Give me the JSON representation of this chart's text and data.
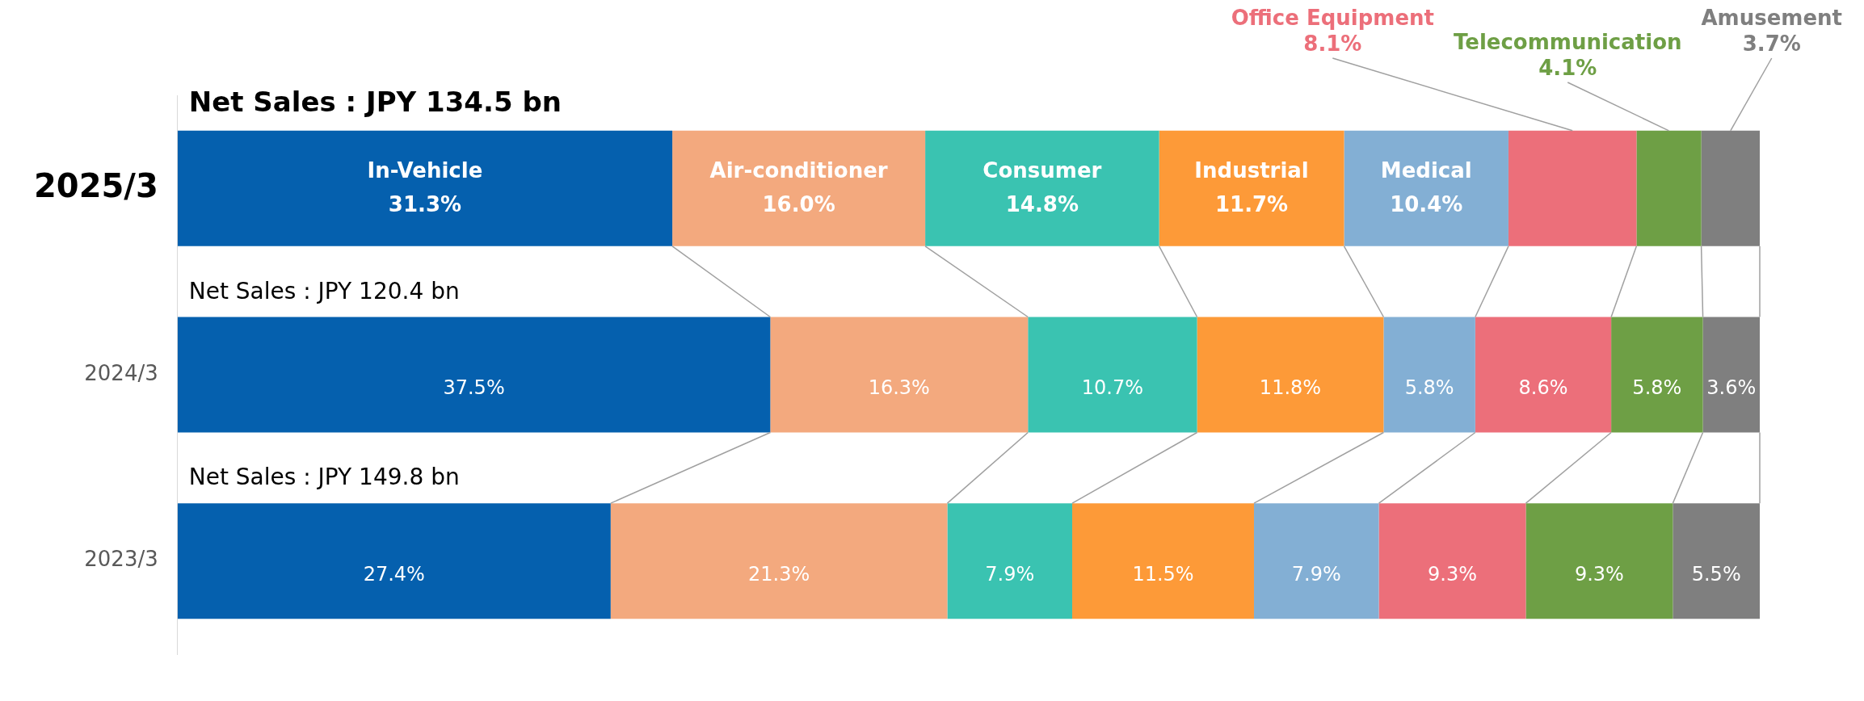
{
  "chart_data": {
    "type": "bar",
    "orientation": "horizontal",
    "stacked": true,
    "categories": [
      "2025/3",
      "2024/3",
      "2023/3"
    ],
    "series": [
      {
        "name": "In-Vehicle",
        "color": "#0560ae",
        "values": [
          31.3,
          37.5,
          27.4
        ],
        "value_labels": [
          "31.3%",
          "37.5%",
          "27.4%"
        ]
      },
      {
        "name": "Air-conditioner",
        "color": "#f3a97e",
        "values": [
          16.0,
          16.3,
          21.3
        ],
        "value_labels": [
          "16.0%",
          "16.3%",
          "21.3%"
        ]
      },
      {
        "name": "Consumer",
        "color": "#3ac3b1",
        "values": [
          14.8,
          10.7,
          7.9
        ],
        "value_labels": [
          "14.8%",
          "10.7%",
          "7.9%"
        ]
      },
      {
        "name": "Industrial",
        "color": "#fd9a38",
        "values": [
          11.7,
          11.8,
          11.5
        ],
        "value_labels": [
          "11.7%",
          "11.8%",
          "11.5%"
        ]
      },
      {
        "name": "Medical",
        "color": "#83afd4",
        "values": [
          10.4,
          5.8,
          7.9
        ],
        "value_labels": [
          "10.4%",
          "5.8%",
          "7.9%"
        ]
      },
      {
        "name": "Office Equipment",
        "color": "#ec6f7a",
        "values": [
          8.1,
          8.6,
          9.3
        ],
        "value_labels": [
          "8.1%",
          "8.6%",
          "9.3%"
        ]
      },
      {
        "name": "Telecommunication",
        "color": "#6e9f45",
        "values": [
          4.1,
          5.8,
          9.3
        ],
        "value_labels": [
          "4.1%",
          "5.8%",
          "9.3%"
        ]
      },
      {
        "name": "Amusement",
        "color": "#7f7f7f",
        "values": [
          3.7,
          3.6,
          5.5
        ],
        "value_labels": [
          "3.7%",
          "3.6%",
          "5.5%"
        ]
      }
    ],
    "annotations": [
      "Net Sales : JPY 134.5 bn",
      "Net Sales : JPY 120.4 bn",
      "Net Sales : JPY 149.8 bn"
    ],
    "tick_labels": "y",
    "grid": false,
    "legend": false
  }
}
